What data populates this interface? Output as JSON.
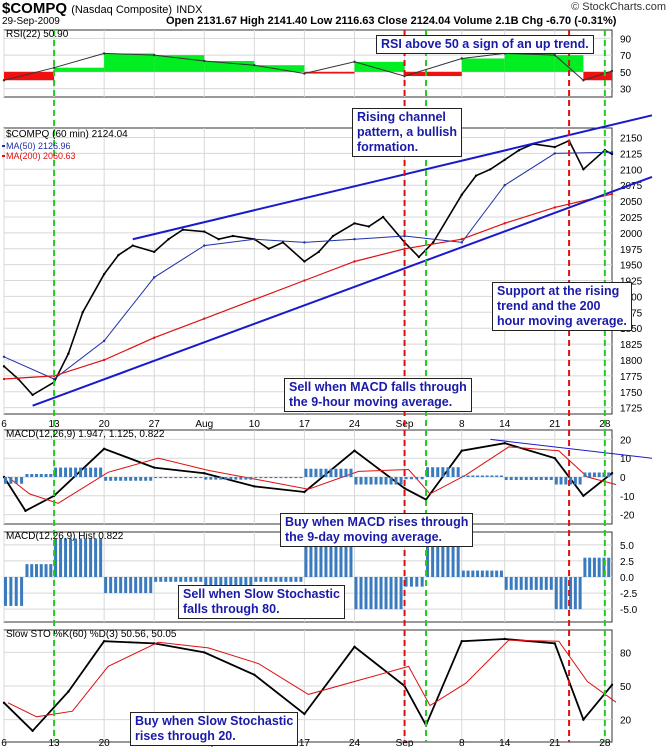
{
  "header": {
    "symbol": "$COMPQ",
    "name": "(Nasdaq Composite)",
    "exchange": "INDX",
    "brand": "© StockCharts.com",
    "date": "29-Sep-2009",
    "ohlc": "Open 2131.67   High 2141.40   Low 2116.63   Close 2124.04   Volume 2.1B   Chg -6.70 (-0.31%)"
  },
  "panels": {
    "rsi": {
      "label": "RSI(22) 50.90",
      "ticks": [
        "90",
        "70",
        "50",
        "30"
      ]
    },
    "price": {
      "label": "$COMPQ (60 min) 2124.04",
      "ma50_label": "MA(50) 2126.96",
      "ma200_label": "MA(200) 2060.63",
      "ticks": [
        "2150",
        "2125",
        "2100",
        "2075",
        "2050",
        "2025",
        "2000",
        "1975",
        "1950",
        "1925",
        "1900",
        "1875",
        "1850",
        "1825",
        "1800",
        "1775",
        "1750",
        "1725"
      ]
    },
    "macd": {
      "label": "MACD(12,26,9) 1.947, 1.125, 0.822",
      "ticks": [
        "20",
        "10",
        "0",
        "-10",
        "-20"
      ]
    },
    "hist": {
      "label": "MACD(12,26,9) Hist 0.822",
      "ticks": [
        "5.0",
        "2.5",
        "0.0",
        "-2.5",
        "-5.0"
      ]
    },
    "sto": {
      "label": "Slow STO %K(60) %D(3) 50.56, 50.05",
      "ticks": [
        "80",
        "50",
        "20"
      ]
    }
  },
  "annotations": {
    "rsi_note": "RSI above 50 a sign of an up trend.",
    "channel_note": "Rising channel\npattern, a bullish\nformation.",
    "support_note": "Support at the rising\ntrend and the 200\nhour moving average.",
    "sell_macd": "Sell when MACD falls through\nthe 9-hour moving average.",
    "buy_macd": "Buy when MACD rises through\nthe 9-day moving average.",
    "sell_sto": "Sell when Slow Stochastic\nfalls through 80.",
    "buy_sto": "Buy when Slow Stochastic\nrises through 20."
  },
  "colors": {
    "up": "#00ee22",
    "down": "#ee1111",
    "ma50": "#1d2fa8",
    "ma200": "#dd1111",
    "trend": "#1a1acc",
    "hist": "#3a7bbf",
    "vbuy": "#22cc22",
    "vsell": "#dd1111",
    "grid": "#d8d8d8"
  },
  "chart_data": {
    "type": "line",
    "title": "$COMPQ (Nasdaq Composite) INDX",
    "x_tick_labels": [
      "6",
      "13",
      "20",
      "27",
      "Aug",
      "10",
      "17",
      "24",
      "Sep",
      "8",
      "14",
      "21",
      "28"
    ],
    "x_dates": [
      "2009-07-06",
      "2009-07-13",
      "2009-07-20",
      "2009-07-27",
      "2009-08-03",
      "2009-08-10",
      "2009-08-17",
      "2009-08-24",
      "2009-08-31",
      "2009-09-08",
      "2009-09-14",
      "2009-09-21",
      "2009-09-28"
    ],
    "buy_lines": [
      "2009-07-13",
      "2009-09-03",
      "2009-09-28"
    ],
    "sell_lines": [
      "2009-08-31",
      "2009-09-23"
    ],
    "series": [
      {
        "name": "$COMPQ (60 min)",
        "panel": "price",
        "x": [
          "2009-07-06",
          "2009-07-08",
          "2009-07-10",
          "2009-07-13",
          "2009-07-15",
          "2009-07-17",
          "2009-07-20",
          "2009-07-22",
          "2009-07-24",
          "2009-07-27",
          "2009-07-29",
          "2009-07-31",
          "2009-08-03",
          "2009-08-05",
          "2009-08-07",
          "2009-08-10",
          "2009-08-12",
          "2009-08-14",
          "2009-08-17",
          "2009-08-19",
          "2009-08-21",
          "2009-08-24",
          "2009-08-26",
          "2009-08-28",
          "2009-08-31",
          "2009-09-02",
          "2009-09-04",
          "2009-09-08",
          "2009-09-10",
          "2009-09-12",
          "2009-09-14",
          "2009-09-16",
          "2009-09-18",
          "2009-09-21",
          "2009-09-23",
          "2009-09-25",
          "2009-09-28",
          "2009-09-29"
        ],
        "values": [
          1790,
          1770,
          1745,
          1765,
          1810,
          1875,
          1935,
          1965,
          1980,
          1970,
          1990,
          2005,
          2002,
          1990,
          1995,
          1990,
          1975,
          1985,
          1955,
          1970,
          1995,
          2015,
          2010,
          2025,
          1985,
          1962,
          1985,
          2060,
          2090,
          2100,
          2115,
          2130,
          2140,
          2135,
          2145,
          2100,
          2130,
          2124
        ]
      },
      {
        "name": "MA(50)",
        "panel": "price",
        "x": [
          "2009-07-06",
          "2009-07-13",
          "2009-07-20",
          "2009-07-27",
          "2009-08-03",
          "2009-08-10",
          "2009-08-17",
          "2009-08-24",
          "2009-08-31",
          "2009-09-08",
          "2009-09-14",
          "2009-09-21",
          "2009-09-29"
        ],
        "values": [
          1805,
          1770,
          1830,
          1930,
          1980,
          1990,
          1985,
          1990,
          1995,
          1985,
          2075,
          2125,
          2127
        ]
      },
      {
        "name": "MA(200)",
        "panel": "price",
        "x": [
          "2009-07-06",
          "2009-07-13",
          "2009-07-20",
          "2009-07-27",
          "2009-08-03",
          "2009-08-10",
          "2009-08-17",
          "2009-08-24",
          "2009-08-31",
          "2009-09-08",
          "2009-09-14",
          "2009-09-21",
          "2009-09-29"
        ],
        "values": [
          1770,
          1775,
          1800,
          1835,
          1865,
          1895,
          1925,
          1955,
          1975,
          1990,
          2015,
          2040,
          2061
        ]
      },
      {
        "name": "RSI(22)",
        "panel": "rsi",
        "x": [
          "2009-07-06",
          "2009-07-13",
          "2009-07-20",
          "2009-07-27",
          "2009-08-03",
          "2009-08-10",
          "2009-08-17",
          "2009-08-24",
          "2009-08-31",
          "2009-09-08",
          "2009-09-14",
          "2009-09-21",
          "2009-09-25",
          "2009-09-29"
        ],
        "values": [
          40,
          55,
          72,
          70,
          63,
          58,
          48,
          62,
          45,
          66,
          72,
          70,
          40,
          51
        ]
      },
      {
        "name": "MACD(12,26,9)",
        "panel": "macd",
        "x": [
          "2009-07-06",
          "2009-07-09",
          "2009-07-13",
          "2009-07-20",
          "2009-07-27",
          "2009-08-03",
          "2009-08-10",
          "2009-08-17",
          "2009-08-24",
          "2009-08-31",
          "2009-09-03",
          "2009-09-08",
          "2009-09-14",
          "2009-09-21",
          "2009-09-25",
          "2009-09-29"
        ],
        "values": [
          0,
          -18,
          -10,
          15,
          5,
          2,
          -5,
          -8,
          14,
          -6,
          -12,
          14,
          18,
          10,
          -10,
          2
        ]
      },
      {
        "name": "Slow STO %K(60)",
        "panel": "sto",
        "x": [
          "2009-07-06",
          "2009-07-10",
          "2009-07-15",
          "2009-07-20",
          "2009-07-27",
          "2009-08-03",
          "2009-08-10",
          "2009-08-17",
          "2009-08-24",
          "2009-08-31",
          "2009-09-03",
          "2009-09-08",
          "2009-09-14",
          "2009-09-21",
          "2009-09-25",
          "2009-09-29"
        ],
        "values": [
          35,
          10,
          45,
          90,
          88,
          80,
          60,
          25,
          85,
          50,
          15,
          90,
          92,
          88,
          20,
          51
        ]
      }
    ]
  }
}
